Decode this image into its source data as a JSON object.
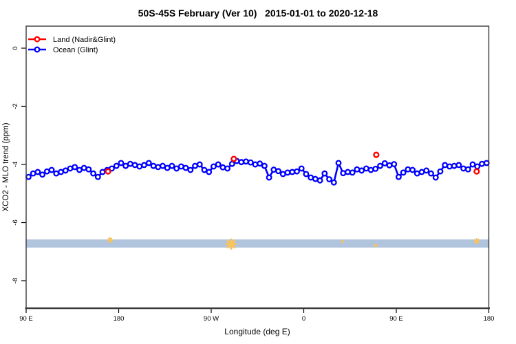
{
  "title": "50S-45S February (Ver 10)   2015-01-01 to 2020-12-18",
  "legend": {
    "items": [
      {
        "label": "Land (Nadir&Glint)",
        "color": "#ff0000"
      },
      {
        "label": "Ocean (Glint)",
        "color": "#0000ff"
      }
    ]
  },
  "chart_data": {
    "type": "line",
    "title": "50S-45S February (Ver 10)   2015-01-01 to 2020-12-18",
    "xlabel": "Longitude (deg E)",
    "ylabel": "XCO2 - MLO trend (ppm)",
    "xlim": [
      90,
      540
    ],
    "ylim": [
      -8.95,
      0.65
    ],
    "grid": false,
    "legend_position": "top-left-inside",
    "x_ticks": {
      "positions": [
        90,
        180,
        270,
        360,
        450,
        540
      ],
      "labels": [
        "90 E",
        "180",
        "90 W",
        "0",
        "90 E",
        "180"
      ]
    },
    "y_ticks": {
      "positions": [
        0,
        -2,
        -4,
        -6,
        -8
      ],
      "labels": [
        "0",
        "-2",
        "-4",
        "-6",
        "-8"
      ]
    },
    "series": [
      {
        "name": "Ocean (Glint)",
        "color": "#0000ff",
        "style": "line+open-circles",
        "x_start": 92.3,
        "x_step": 4.5,
        "values": [
          -4.43,
          -4.31,
          -4.26,
          -4.35,
          -4.24,
          -4.19,
          -4.31,
          -4.26,
          -4.21,
          -4.14,
          -4.09,
          -4.19,
          -4.12,
          -4.17,
          -4.31,
          -4.43,
          -4.26,
          -4.19,
          -4.14,
          -4.05,
          -3.95,
          -4.05,
          -3.98,
          -4.02,
          -4.07,
          -4.02,
          -3.95,
          -4.05,
          -4.09,
          -4.05,
          -4.12,
          -4.05,
          -4.14,
          -4.07,
          -4.12,
          -4.19,
          -4.05,
          -4.0,
          -4.19,
          -4.26,
          -4.07,
          -4.0,
          -4.1,
          -4.14,
          -3.98,
          -3.88,
          -3.92,
          -3.9,
          -3.93,
          -4.0,
          -3.97,
          -4.05,
          -4.45,
          -4.18,
          -4.23,
          -4.33,
          -4.28,
          -4.26,
          -4.24,
          -4.14,
          -4.33,
          -4.45,
          -4.5,
          -4.55,
          -4.31,
          -4.51,
          -4.62,
          -3.95,
          -4.3,
          -4.26,
          -4.28,
          -4.17,
          -4.21,
          -4.14,
          -4.19,
          -4.15,
          -4.05,
          -3.96,
          -4.03,
          -3.99,
          -4.43,
          -4.28,
          -4.17,
          -4.19,
          -4.31,
          -4.26,
          -4.21,
          -4.31,
          -4.45,
          -4.24,
          -4.02,
          -4.07,
          -4.05,
          -4.02,
          -4.14,
          -4.17,
          -4.0,
          -4.07,
          -3.98,
          -3.95
        ]
      },
      {
        "name": "Land (Nadir&Glint)",
        "color": "#ff0000",
        "style": "open-circles",
        "points": [
          {
            "x": 169.6,
            "y": -4.24
          },
          {
            "x": 292.0,
            "y": -3.81
          },
          {
            "x": 430.5,
            "y": -3.67
          },
          {
            "x": 528.2,
            "y": -4.24
          }
        ]
      }
    ],
    "band": {
      "x_from": 90,
      "x_to": 540,
      "y_from": -6.86,
      "y_to": -6.58,
      "color": "#b0c4de"
    },
    "band_markers": {
      "color": "#f7c35e",
      "points": [
        {
          "x": 171.6,
          "y": -6.6,
          "size": 7
        },
        {
          "x": 289.3,
          "y": -6.74,
          "size": 13
        },
        {
          "x": 397.7,
          "y": -6.65,
          "size": 3
        },
        {
          "x": 429.8,
          "y": -6.79,
          "size": 4
        },
        {
          "x": 528.2,
          "y": -6.63,
          "size": 7
        }
      ]
    }
  }
}
